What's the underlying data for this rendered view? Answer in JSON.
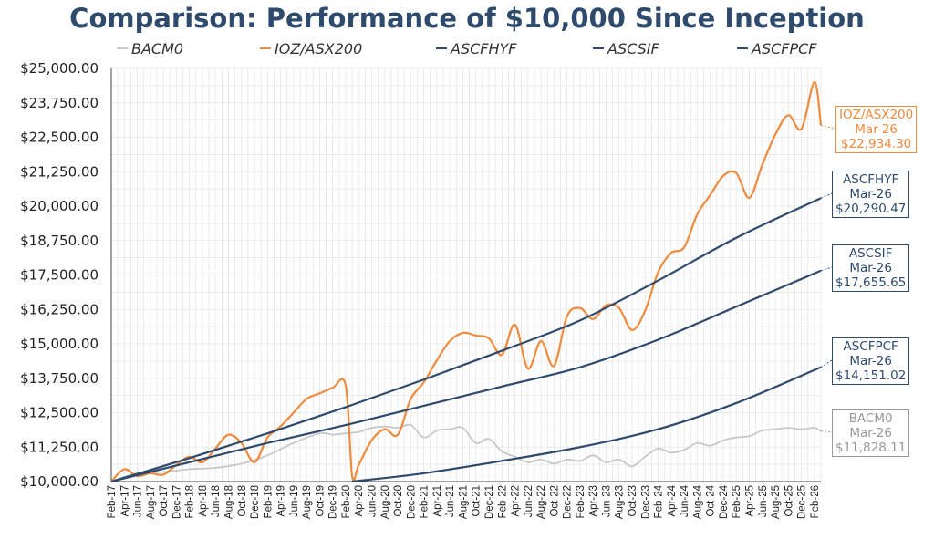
{
  "title": "Comparison: Performance of $10,000 Since Inception",
  "legend": [
    {
      "name": "BACM0",
      "color": "#c8c8c8"
    },
    {
      "name": "IOZ/ASX200",
      "color": "#f08a3c"
    },
    {
      "name": "ASCFHYF",
      "color": "#2e4a6d"
    },
    {
      "name": "ASCSIF",
      "color": "#2e4a6d"
    },
    {
      "name": "ASCFPCF",
      "color": "#2e4a6d"
    }
  ],
  "callouts": [
    {
      "series": "IOZ/ASX200",
      "label": "IOZ/ASX200",
      "date": "Mar-26",
      "value": "$22,934.30",
      "color": "#f08a3c"
    },
    {
      "series": "ASCFHYF",
      "label": "ASCFHYF",
      "date": "Mar-26",
      "value": "$20,290.47",
      "color": "#2e4a6d"
    },
    {
      "series": "ASCSIF",
      "label": "ASCSIF",
      "date": "Mar-26",
      "value": "$17,655.65",
      "color": "#2e4a6d"
    },
    {
      "series": "ASCFPCF",
      "label": "ASCFPCF",
      "date": "Mar-26",
      "value": "$14,151.02",
      "color": "#2e4a6d"
    },
    {
      "series": "BACM0",
      "label": "BACM0",
      "date": "Mar-26",
      "value": "$11,828.11",
      "color": "#9a9a9a"
    }
  ],
  "chart_data": {
    "type": "line",
    "title": "Comparison: Performance of $10,000 Since Inception",
    "ylim": [
      10000,
      25000
    ],
    "y_ticks": [
      "$10,000.00",
      "$11,250.00",
      "$12,500.00",
      "$13,750.00",
      "$15,000.00",
      "$16,250.00",
      "$17,500.00",
      "$18,750.00",
      "$20,000.00",
      "$21,250.00",
      "$22,500.00",
      "$23,750.00",
      "$25,000.00"
    ],
    "x_ticks": [
      "Feb-17",
      "Apr-17",
      "Jun-17",
      "Aug-17",
      "Oct-17",
      "Dec-17",
      "Feb-18",
      "Apr-18",
      "Jun-18",
      "Aug-18",
      "Oct-18",
      "Dec-18",
      "Feb-19",
      "Apr-19",
      "Jun-19",
      "Aug-19",
      "Oct-19",
      "Dec-19",
      "Feb-20",
      "Apr-20",
      "Jun-20",
      "Aug-20",
      "Oct-20",
      "Dec-20",
      "Feb-21",
      "Apr-21",
      "Jun-21",
      "Aug-21",
      "Oct-21",
      "Dec-21",
      "Feb-22",
      "Apr-22",
      "Jun-22",
      "Aug-22",
      "Oct-22",
      "Dec-22",
      "Feb-23",
      "Apr-23",
      "Jun-23",
      "Aug-23",
      "Oct-23",
      "Dec-23",
      "Feb-24",
      "Apr-24",
      "Jun-24",
      "Aug-24",
      "Oct-24",
      "Dec-24",
      "Feb-25",
      "Apr-25",
      "Jun-25",
      "Aug-25",
      "Oct-25",
      "Dec-25",
      "Feb-26"
    ],
    "x_range": [
      "Feb-17",
      "Mar-26"
    ],
    "grid": true,
    "legend_position": "top",
    "series": [
      {
        "name": "BACM0",
        "color": "#c8c8c8",
        "points": [
          [
            "Feb-17",
            10000
          ],
          [
            "Jun-17",
            10300
          ],
          [
            "Oct-17",
            10350
          ],
          [
            "Feb-18",
            10450
          ],
          [
            "Jun-18",
            10500
          ],
          [
            "Oct-18",
            10650
          ],
          [
            "Feb-19",
            10950
          ],
          [
            "Jun-19",
            11400
          ],
          [
            "Oct-19",
            11750
          ],
          [
            "Dec-19",
            11700
          ],
          [
            "Feb-20",
            11750
          ],
          [
            "Apr-20",
            11800
          ],
          [
            "Jun-20",
            11950
          ],
          [
            "Aug-20",
            12000
          ],
          [
            "Oct-20",
            11950
          ],
          [
            "Dec-20",
            12050
          ],
          [
            "Feb-21",
            11600
          ],
          [
            "Apr-21",
            11850
          ],
          [
            "Jun-21",
            11900
          ],
          [
            "Aug-21",
            11950
          ],
          [
            "Oct-21",
            11400
          ],
          [
            "Dec-21",
            11550
          ],
          [
            "Feb-22",
            11100
          ],
          [
            "Apr-22",
            10900
          ],
          [
            "Jun-22",
            10700
          ],
          [
            "Aug-22",
            10800
          ],
          [
            "Oct-22",
            10650
          ],
          [
            "Dec-22",
            10800
          ],
          [
            "Feb-23",
            10750
          ],
          [
            "Apr-23",
            10950
          ],
          [
            "Jun-23",
            10700
          ],
          [
            "Aug-23",
            10800
          ],
          [
            "Oct-23",
            10550
          ],
          [
            "Dec-23",
            10900
          ],
          [
            "Feb-24",
            11200
          ],
          [
            "Apr-24",
            11050
          ],
          [
            "Jun-24",
            11150
          ],
          [
            "Aug-24",
            11400
          ],
          [
            "Oct-24",
            11300
          ],
          [
            "Dec-24",
            11500
          ],
          [
            "Feb-25",
            11600
          ],
          [
            "Apr-25",
            11650
          ],
          [
            "Jun-25",
            11850
          ],
          [
            "Aug-25",
            11900
          ],
          [
            "Oct-25",
            11950
          ],
          [
            "Dec-25",
            11900
          ],
          [
            "Feb-26",
            11950
          ],
          [
            "Mar-26",
            11828.11
          ]
        ]
      },
      {
        "name": "IOZ/ASX200",
        "color": "#f08a3c",
        "points": [
          [
            "Feb-17",
            10000
          ],
          [
            "Apr-17",
            10450
          ],
          [
            "Jun-17",
            10200
          ],
          [
            "Aug-17",
            10300
          ],
          [
            "Oct-17",
            10250
          ],
          [
            "Dec-17",
            10600
          ],
          [
            "Feb-18",
            10900
          ],
          [
            "Apr-18",
            10700
          ],
          [
            "Jun-18",
            11200
          ],
          [
            "Aug-18",
            11700
          ],
          [
            "Oct-18",
            11400
          ],
          [
            "Dec-18",
            10700
          ],
          [
            "Feb-19",
            11600
          ],
          [
            "Apr-19",
            12000
          ],
          [
            "Jun-19",
            12500
          ],
          [
            "Aug-19",
            13000
          ],
          [
            "Oct-19",
            13200
          ],
          [
            "Dec-19",
            13400
          ],
          [
            "Feb-20",
            13500
          ],
          [
            "Mar-20",
            10200
          ],
          [
            "Apr-20",
            10600
          ],
          [
            "Jun-20",
            11500
          ],
          [
            "Aug-20",
            11900
          ],
          [
            "Oct-20",
            11700
          ],
          [
            "Dec-20",
            13000
          ],
          [
            "Feb-21",
            13600
          ],
          [
            "Apr-21",
            14400
          ],
          [
            "Jun-21",
            15100
          ],
          [
            "Aug-21",
            15400
          ],
          [
            "Oct-21",
            15300
          ],
          [
            "Dec-21",
            15200
          ],
          [
            "Feb-22",
            14600
          ],
          [
            "Apr-22",
            15700
          ],
          [
            "Jun-22",
            14100
          ],
          [
            "Aug-22",
            15100
          ],
          [
            "Oct-22",
            14200
          ],
          [
            "Dec-22",
            16000
          ],
          [
            "Feb-23",
            16300
          ],
          [
            "Apr-23",
            15900
          ],
          [
            "Jun-23",
            16400
          ],
          [
            "Aug-23",
            16300
          ],
          [
            "Oct-23",
            15500
          ],
          [
            "Dec-23",
            16200
          ],
          [
            "Feb-24",
            17600
          ],
          [
            "Apr-24",
            18300
          ],
          [
            "Jun-24",
            18500
          ],
          [
            "Aug-24",
            19700
          ],
          [
            "Oct-24",
            20400
          ],
          [
            "Dec-24",
            21100
          ],
          [
            "Feb-25",
            21200
          ],
          [
            "Apr-25",
            20300
          ],
          [
            "Jun-25",
            21500
          ],
          [
            "Aug-25",
            22600
          ],
          [
            "Oct-25",
            23300
          ],
          [
            "Dec-25",
            22800
          ],
          [
            "Feb-26",
            24500
          ],
          [
            "Mar-26",
            22934.3
          ]
        ]
      },
      {
        "name": "ASCFHYF",
        "color": "#2e4a6d",
        "points": [
          [
            "Feb-17",
            10000
          ],
          [
            "Feb-18",
            10850
          ],
          [
            "Feb-19",
            11750
          ],
          [
            "Feb-20",
            12700
          ],
          [
            "Feb-21",
            13700
          ],
          [
            "Feb-22",
            14750
          ],
          [
            "Feb-23",
            15850
          ],
          [
            "Feb-24",
            17300
          ],
          [
            "Feb-25",
            18850
          ],
          [
            "Mar-26",
            20290.47
          ]
        ]
      },
      {
        "name": "ASCSIF",
        "color": "#2e4a6d",
        "points": [
          [
            "Feb-17",
            10000
          ],
          [
            "Feb-18",
            10700
          ],
          [
            "Feb-19",
            11400
          ],
          [
            "Feb-20",
            12050
          ],
          [
            "Feb-21",
            12750
          ],
          [
            "Feb-22",
            13450
          ],
          [
            "Feb-23",
            14150
          ],
          [
            "Feb-24",
            15150
          ],
          [
            "Feb-25",
            16350
          ],
          [
            "Mar-26",
            17655.65
          ]
        ]
      },
      {
        "name": "ASCFPCF",
        "color": "#2e4a6d",
        "points": [
          [
            "Mar-20",
            10000
          ],
          [
            "Feb-21",
            10300
          ],
          [
            "Feb-22",
            10750
          ],
          [
            "Feb-23",
            11250
          ],
          [
            "Feb-24",
            11900
          ],
          [
            "Feb-25",
            12850
          ],
          [
            "Mar-26",
            14151.02
          ]
        ]
      }
    ]
  }
}
